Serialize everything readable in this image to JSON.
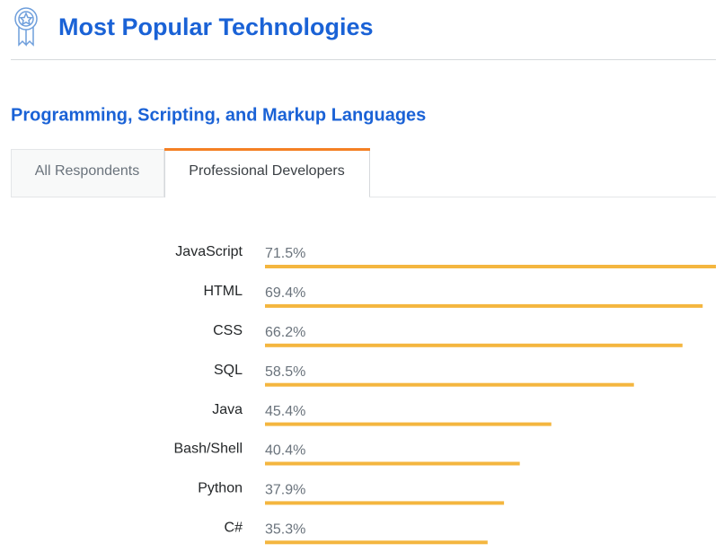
{
  "header": {
    "title": "Most Popular Technologies"
  },
  "section": {
    "title": "Programming, Scripting, and Markup Languages"
  },
  "tabs": [
    "All Respondents",
    "Professional Developers"
  ],
  "chart_data": {
    "type": "bar",
    "orientation": "horizontal",
    "categories": [
      "JavaScript",
      "HTML",
      "CSS",
      "SQL",
      "Java",
      "Bash/Shell",
      "Python",
      "C#"
    ],
    "values": [
      71.5,
      69.4,
      66.2,
      58.5,
      45.4,
      40.4,
      37.9,
      35.3
    ],
    "value_labels": [
      "71.5%",
      "69.4%",
      "66.2%",
      "58.5%",
      "45.4%",
      "40.4%",
      "37.9%",
      "35.3%"
    ],
    "color": "#f4b63f"
  }
}
